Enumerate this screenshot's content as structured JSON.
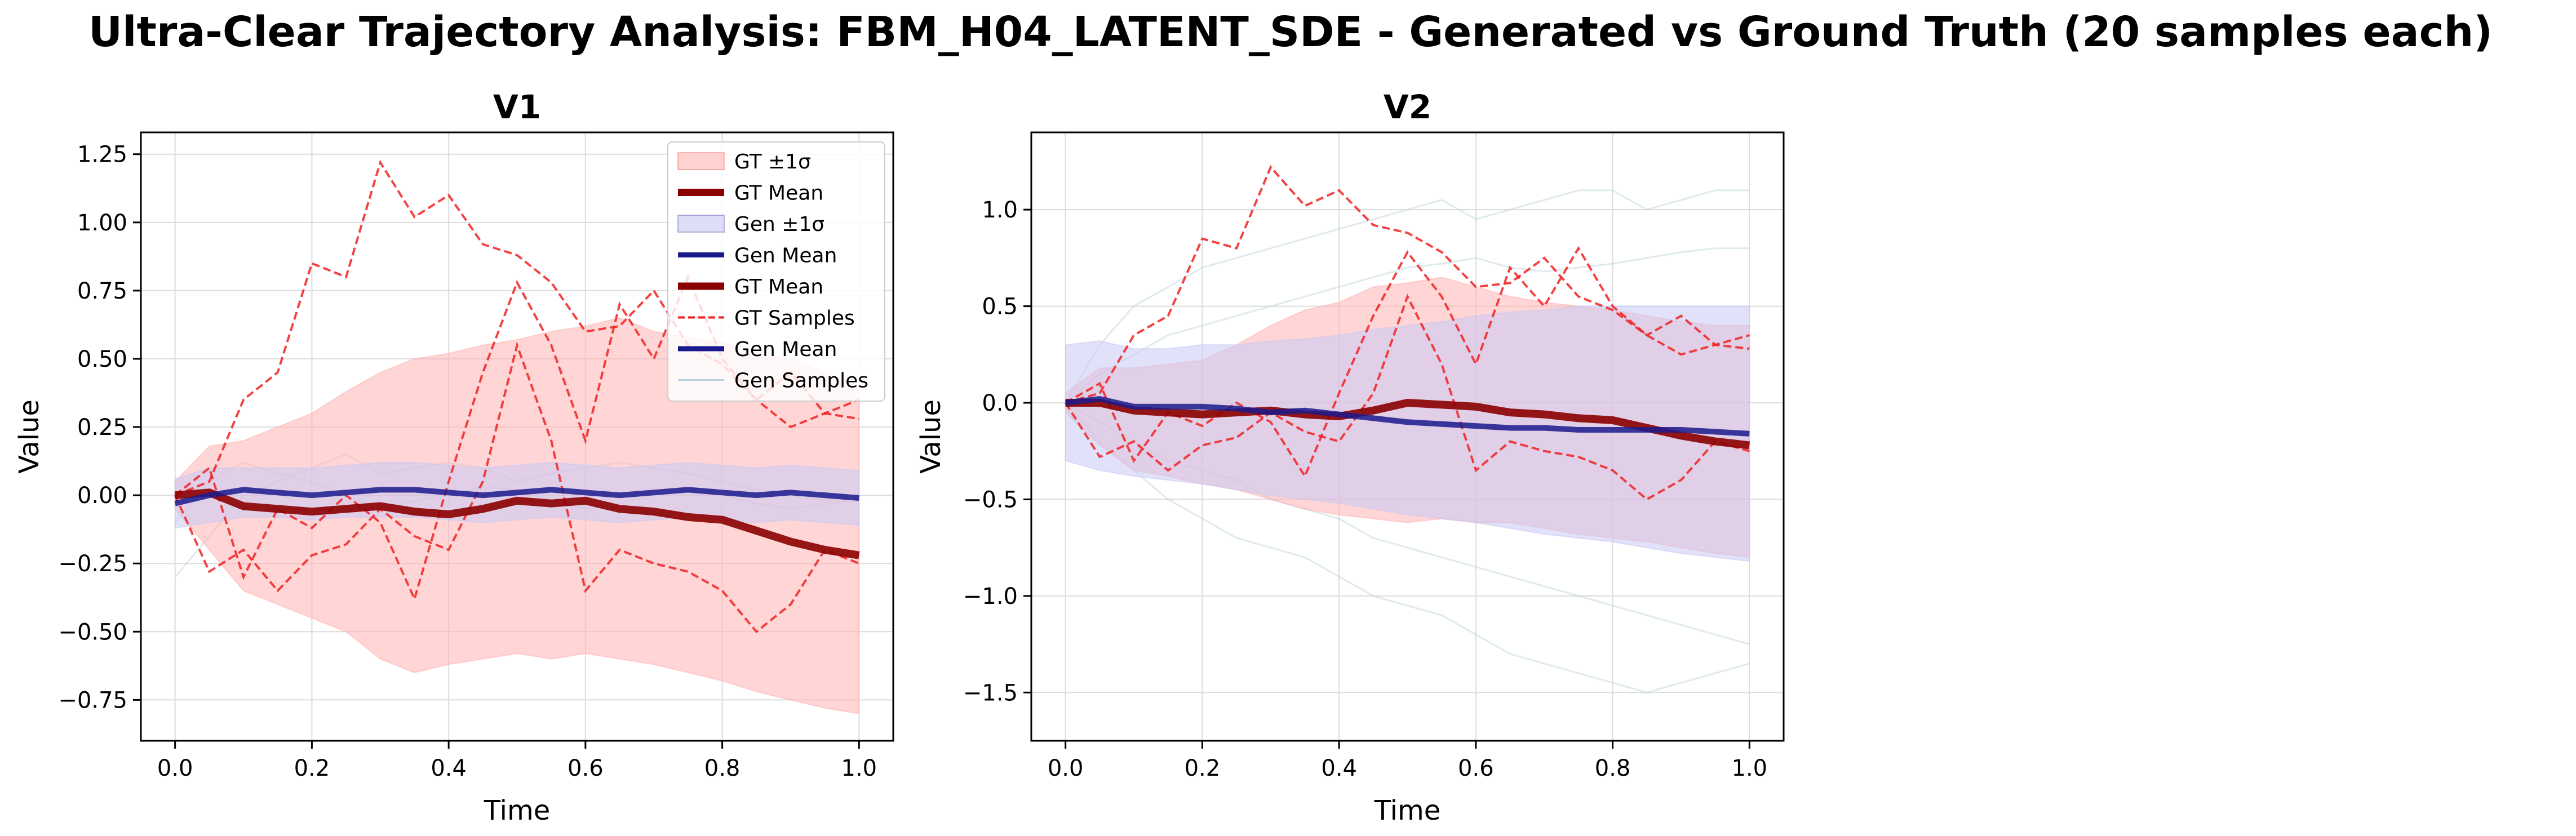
{
  "figure_title": "Ultra-Clear Trajectory Analysis: FBM_H04_LATENT_SDE - Generated vs Ground Truth (20 samples each)",
  "colors": {
    "gt_band": "#ffb3b3",
    "gen_band": "#c8c8f5",
    "gt_mean": "#8b0000",
    "gen_mean": "#1a1a8c",
    "gt_sample": "#ee2222",
    "gen_sample": "#b8d0dc",
    "grid": "#dcdcdc"
  },
  "chart_data": [
    {
      "type": "line",
      "title": "V1",
      "xlabel": "Time",
      "ylabel": "Value",
      "xlim": [
        -0.05,
        1.05
      ],
      "ylim": [
        -0.9,
        1.33
      ],
      "x_ticks": [
        "0.0",
        "0.2",
        "0.4",
        "0.6",
        "0.8",
        "1.0"
      ],
      "y_ticks": [
        "−0.75",
        "−0.50",
        "−0.25",
        "0.00",
        "0.25",
        "0.50",
        "0.75",
        "1.00",
        "1.25"
      ],
      "legend_position": "top-right",
      "legend": [
        "GT ±1σ",
        "GT Mean",
        "Gen ±1σ",
        "Gen Mean",
        "GT Mean",
        "GT Samples",
        "Gen Mean",
        "Gen Samples"
      ],
      "x": [
        0.0,
        0.05,
        0.1,
        0.15,
        0.2,
        0.25,
        0.3,
        0.35,
        0.4,
        0.45,
        0.5,
        0.55,
        0.6,
        0.65,
        0.7,
        0.75,
        0.8,
        0.85,
        0.9,
        0.95,
        1.0
      ],
      "gt_mean": [
        0.0,
        0.01,
        -0.04,
        -0.05,
        -0.06,
        -0.05,
        -0.04,
        -0.06,
        -0.07,
        -0.05,
        -0.02,
        -0.03,
        -0.02,
        -0.05,
        -0.06,
        -0.08,
        -0.09,
        -0.13,
        -0.17,
        -0.2,
        -0.22
      ],
      "gt_band": [
        [
          -0.05,
          0.05
        ],
        [
          -0.2,
          0.18
        ],
        [
          -0.35,
          0.2
        ],
        [
          -0.4,
          0.25
        ],
        [
          -0.45,
          0.3
        ],
        [
          -0.5,
          0.38
        ],
        [
          -0.6,
          0.45
        ],
        [
          -0.65,
          0.5
        ],
        [
          -0.62,
          0.52
        ],
        [
          -0.6,
          0.55
        ],
        [
          -0.58,
          0.57
        ],
        [
          -0.6,
          0.6
        ],
        [
          -0.58,
          0.62
        ],
        [
          -0.6,
          0.65
        ],
        [
          -0.62,
          0.6
        ],
        [
          -0.65,
          0.58
        ],
        [
          -0.68,
          0.56
        ],
        [
          -0.72,
          0.52
        ],
        [
          -0.75,
          0.5
        ],
        [
          -0.78,
          0.45
        ],
        [
          -0.8,
          0.4
        ]
      ],
      "gen_mean": [
        -0.03,
        0.0,
        0.02,
        0.01,
        0.0,
        0.01,
        0.02,
        0.02,
        0.01,
        0.0,
        0.01,
        0.02,
        0.01,
        0.0,
        0.01,
        0.02,
        0.01,
        0.0,
        0.01,
        0.0,
        -0.01
      ],
      "gen_band": [
        [
          -0.12,
          0.06
        ],
        [
          -0.1,
          0.1
        ],
        [
          -0.08,
          0.1
        ],
        [
          -0.08,
          0.1
        ],
        [
          -0.09,
          0.1
        ],
        [
          -0.08,
          0.11
        ],
        [
          -0.08,
          0.12
        ],
        [
          -0.08,
          0.12
        ],
        [
          -0.09,
          0.11
        ],
        [
          -0.1,
          0.1
        ],
        [
          -0.09,
          0.11
        ],
        [
          -0.08,
          0.12
        ],
        [
          -0.09,
          0.11
        ],
        [
          -0.1,
          0.1
        ],
        [
          -0.09,
          0.11
        ],
        [
          -0.08,
          0.12
        ],
        [
          -0.09,
          0.11
        ],
        [
          -0.1,
          0.1
        ],
        [
          -0.09,
          0.11
        ],
        [
          -0.1,
          0.1
        ],
        [
          -0.11,
          0.09
        ]
      ],
      "gt_samples": [
        [
          0.0,
          0.05,
          0.35,
          0.45,
          0.85,
          0.8,
          1.22,
          1.02,
          1.1,
          0.92,
          0.88,
          0.78,
          0.6,
          0.62,
          0.75,
          0.55,
          0.48,
          0.35,
          0.45,
          0.3,
          0.28
        ],
        [
          0.0,
          -0.28,
          -0.2,
          -0.35,
          -0.22,
          -0.18,
          -0.05,
          -0.15,
          -0.2,
          0.05,
          0.55,
          0.2,
          -0.35,
          -0.2,
          -0.25,
          -0.28,
          -0.35,
          -0.5,
          -0.4,
          -0.2,
          -0.25
        ],
        [
          0.0,
          0.1,
          -0.3,
          -0.05,
          -0.12,
          0.0,
          -0.1,
          -0.38,
          0.05,
          0.45,
          0.78,
          0.55,
          0.2,
          0.7,
          0.5,
          0.8,
          0.5,
          0.35,
          0.25,
          0.3,
          0.35
        ]
      ],
      "gen_samples": [
        [
          -0.3,
          -0.15,
          0.0,
          0.05,
          0.1,
          0.15,
          0.08,
          0.1,
          0.12,
          0.1,
          0.05,
          0.08,
          0.1,
          0.12,
          0.1,
          0.08,
          0.05,
          0.02,
          0.0,
          -0.02,
          0.0
        ],
        [
          -0.1,
          0.05,
          0.12,
          0.08,
          0.05,
          0.0,
          -0.05,
          -0.02,
          0.0,
          0.03,
          0.02,
          -0.02,
          -0.05,
          -0.03,
          0.0,
          0.02,
          0.0,
          -0.03,
          -0.05,
          -0.03,
          -0.02
        ]
      ]
    },
    {
      "type": "line",
      "title": "V2",
      "xlabel": "Time",
      "ylabel": "Value",
      "xlim": [
        -0.05,
        1.05
      ],
      "ylim": [
        -1.75,
        1.4
      ],
      "x_ticks": [
        "0.0",
        "0.2",
        "0.4",
        "0.6",
        "0.8",
        "1.0"
      ],
      "y_ticks": [
        "−1.5",
        "−1.0",
        "−0.5",
        "0.0",
        "0.5",
        "1.0"
      ],
      "x": [
        0.0,
        0.05,
        0.1,
        0.15,
        0.2,
        0.25,
        0.3,
        0.35,
        0.4,
        0.45,
        0.5,
        0.55,
        0.6,
        0.65,
        0.7,
        0.75,
        0.8,
        0.85,
        0.9,
        0.95,
        1.0
      ],
      "gt_mean": [
        0.0,
        0.0,
        -0.04,
        -0.05,
        -0.06,
        -0.05,
        -0.04,
        -0.06,
        -0.07,
        -0.04,
        0.0,
        -0.01,
        -0.02,
        -0.05,
        -0.06,
        -0.08,
        -0.09,
        -0.13,
        -0.17,
        -0.2,
        -0.22
      ],
      "gt_band": [
        [
          -0.05,
          0.05
        ],
        [
          -0.22,
          0.18
        ],
        [
          -0.35,
          0.18
        ],
        [
          -0.38,
          0.2
        ],
        [
          -0.42,
          0.22
        ],
        [
          -0.45,
          0.3
        ],
        [
          -0.5,
          0.4
        ],
        [
          -0.55,
          0.48
        ],
        [
          -0.58,
          0.52
        ],
        [
          -0.6,
          0.6
        ],
        [
          -0.62,
          0.62
        ],
        [
          -0.6,
          0.65
        ],
        [
          -0.62,
          0.6
        ],
        [
          -0.62,
          0.55
        ],
        [
          -0.65,
          0.52
        ],
        [
          -0.68,
          0.5
        ],
        [
          -0.7,
          0.48
        ],
        [
          -0.72,
          0.45
        ],
        [
          -0.75,
          0.42
        ],
        [
          -0.78,
          0.4
        ],
        [
          -0.8,
          0.4
        ]
      ],
      "gen_mean": [
        0.0,
        0.02,
        -0.02,
        -0.02,
        -0.02,
        -0.03,
        -0.05,
        -0.04,
        -0.06,
        -0.08,
        -0.1,
        -0.11,
        -0.12,
        -0.13,
        -0.13,
        -0.14,
        -0.14,
        -0.14,
        -0.14,
        -0.15,
        -0.16
      ],
      "gen_band": [
        [
          -0.3,
          0.3
        ],
        [
          -0.35,
          0.32
        ],
        [
          -0.38,
          0.28
        ],
        [
          -0.4,
          0.28
        ],
        [
          -0.42,
          0.3
        ],
        [
          -0.45,
          0.3
        ],
        [
          -0.48,
          0.32
        ],
        [
          -0.5,
          0.33
        ],
        [
          -0.52,
          0.35
        ],
        [
          -0.55,
          0.38
        ],
        [
          -0.58,
          0.4
        ],
        [
          -0.6,
          0.42
        ],
        [
          -0.62,
          0.45
        ],
        [
          -0.65,
          0.47
        ],
        [
          -0.68,
          0.48
        ],
        [
          -0.7,
          0.5
        ],
        [
          -0.72,
          0.5
        ],
        [
          -0.75,
          0.5
        ],
        [
          -0.78,
          0.5
        ],
        [
          -0.8,
          0.5
        ],
        [
          -0.82,
          0.5
        ]
      ],
      "gt_samples": [
        [
          0.0,
          0.05,
          0.35,
          0.45,
          0.85,
          0.8,
          1.22,
          1.02,
          1.1,
          0.92,
          0.88,
          0.78,
          0.6,
          0.62,
          0.75,
          0.55,
          0.48,
          0.35,
          0.45,
          0.3,
          0.28
        ],
        [
          0.0,
          -0.28,
          -0.2,
          -0.35,
          -0.22,
          -0.18,
          -0.05,
          -0.15,
          -0.2,
          0.05,
          0.55,
          0.2,
          -0.35,
          -0.2,
          -0.25,
          -0.28,
          -0.35,
          -0.5,
          -0.4,
          -0.2,
          -0.25
        ],
        [
          0.0,
          0.1,
          -0.3,
          -0.05,
          -0.12,
          0.0,
          -0.1,
          -0.38,
          0.05,
          0.45,
          0.78,
          0.55,
          0.2,
          0.7,
          0.5,
          0.8,
          0.5,
          0.35,
          0.25,
          0.3,
          0.35
        ]
      ],
      "gen_samples": [
        [
          0.0,
          0.3,
          0.5,
          0.6,
          0.7,
          0.75,
          0.8,
          0.85,
          0.9,
          0.95,
          1.0,
          1.05,
          0.95,
          1.0,
          1.05,
          1.1,
          1.1,
          1.0,
          1.05,
          1.1,
          1.1
        ],
        [
          0.0,
          -0.2,
          -0.35,
          -0.5,
          -0.6,
          -0.7,
          -0.75,
          -0.8,
          -0.9,
          -1.0,
          -1.05,
          -1.1,
          -1.2,
          -1.3,
          -1.35,
          -1.4,
          -1.45,
          -1.5,
          -1.45,
          -1.4,
          -1.35
        ],
        [
          0.0,
          -0.1,
          -0.2,
          -0.3,
          -0.35,
          -0.4,
          -0.5,
          -0.55,
          -0.6,
          -0.7,
          -0.75,
          -0.8,
          -0.85,
          -0.9,
          -0.95,
          -1.0,
          -1.05,
          -1.1,
          -1.15,
          -1.2,
          -1.25
        ],
        [
          0.0,
          0.15,
          0.25,
          0.35,
          0.4,
          0.45,
          0.5,
          0.55,
          0.6,
          0.65,
          0.7,
          0.72,
          0.75,
          0.7,
          0.68,
          0.7,
          0.72,
          0.75,
          0.78,
          0.8,
          0.8
        ]
      ]
    }
  ]
}
